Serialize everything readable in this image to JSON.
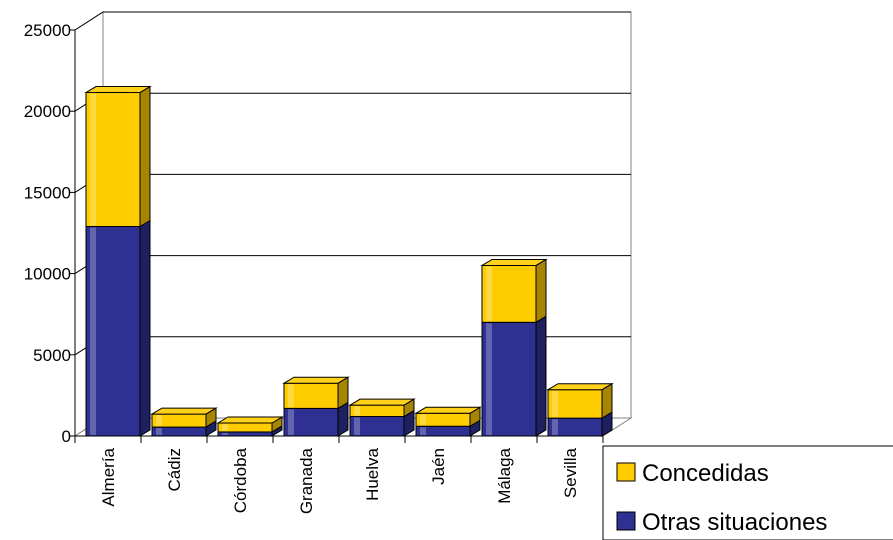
{
  "chart_data": {
    "type": "bar",
    "stacked": true,
    "title": "",
    "xlabel": "",
    "ylabel": "",
    "ylim": [
      0,
      25000
    ],
    "yticks": [
      0,
      5000,
      10000,
      15000,
      20000,
      25000
    ],
    "grid": true,
    "legend_position": "bottom-right",
    "categories": [
      "Almería",
      "Cádiz",
      "Córdoba",
      "Granada",
      "Huelva",
      "Jaén",
      "Málaga",
      "Sevilla"
    ],
    "series": [
      {
        "name": "Otras situaciones",
        "color": "#2e3192",
        "values": [
          12900,
          550,
          250,
          1700,
          1200,
          600,
          7000,
          1100
        ]
      },
      {
        "name": "Concedidas",
        "color": "#ffcc00",
        "values": [
          8250,
          800,
          550,
          1550,
          700,
          800,
          3500,
          1750
        ]
      }
    ],
    "legend": [
      {
        "label": "Concedidas",
        "color": "#ffcc00"
      },
      {
        "label": "Otras situaciones",
        "color": "#2e3192"
      }
    ]
  }
}
